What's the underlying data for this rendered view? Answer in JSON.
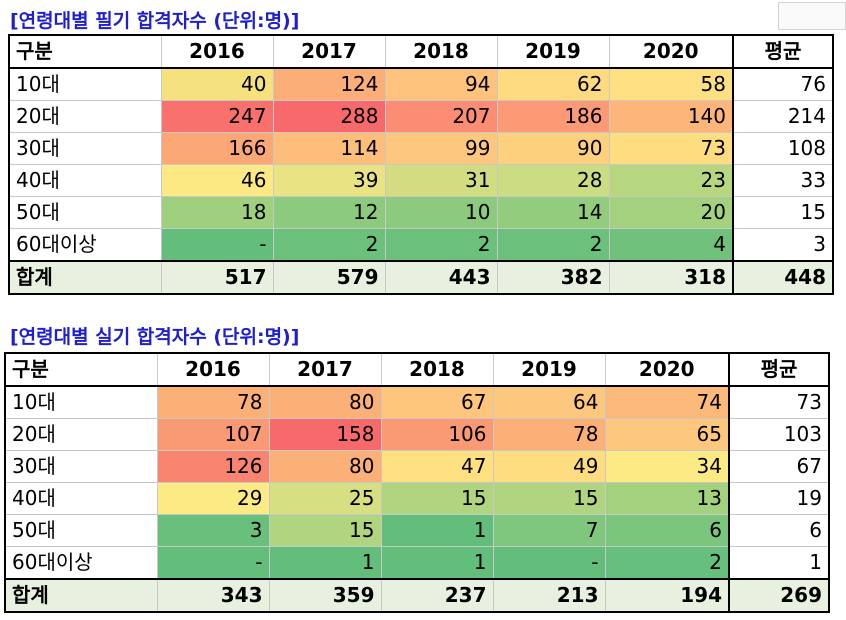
{
  "table1": {
    "title": "[연령대별 필기 합격자수 (단위:명)]",
    "headers": [
      "구분",
      "2016",
      "2017",
      "2018",
      "2019",
      "2020",
      "평균"
    ],
    "rows": [
      {
        "label": "10대",
        "values": [
          "40",
          "124",
          "94",
          "62",
          "58"
        ],
        "colors": [
          "#f5e27f",
          "#fbae78",
          "#fdc37c",
          "#fedb81",
          "#fde081"
        ],
        "avg": "76"
      },
      {
        "label": "20대",
        "values": [
          "247",
          "288",
          "207",
          "186",
          "140"
        ],
        "colors": [
          "#f8716c",
          "#f8696b",
          "#fa8d73",
          "#fb9a75",
          "#fdb57a"
        ],
        "avg": "214"
      },
      {
        "label": "30대",
        "values": [
          "166",
          "114",
          "99",
          "90",
          "73"
        ],
        "colors": [
          "#fca876",
          "#fdbd7b",
          "#fdc77d",
          "#fdd07e",
          "#fedd81"
        ],
        "avg": "108"
      },
      {
        "label": "40대",
        "values": [
          "46",
          "39",
          "31",
          "28",
          "23"
        ],
        "colors": [
          "#fde983",
          "#e9e383",
          "#d2dd82",
          "#cbdc81",
          "#b6d67f"
        ],
        "avg": "33"
      },
      {
        "label": "50대",
        "values": [
          "18",
          "12",
          "10",
          "14",
          "20"
        ],
        "colors": [
          "#9fd07e",
          "#8ccb7e",
          "#8ccb7e",
          "#92cd7e",
          "#a3d17e"
        ],
        "avg": "15"
      },
      {
        "label": "60대이상",
        "values": [
          "-",
          "2",
          "2",
          "2",
          "4"
        ],
        "colors": [
          "#63be7b",
          "#6bc07c",
          "#6bc07c",
          "#6bc07c",
          "#6fc17c"
        ],
        "avg": "3"
      }
    ],
    "total": {
      "label": "합계",
      "values": [
        "517",
        "579",
        "443",
        "382",
        "318"
      ],
      "avg": "448"
    }
  },
  "table2": {
    "title": "[연령대별 실기 합격자수 (단위:명)]",
    "headers": [
      "구분",
      "2016",
      "2017",
      "2018",
      "2019",
      "2020",
      "평균"
    ],
    "rows": [
      {
        "label": "10대",
        "values": [
          "78",
          "80",
          "67",
          "64",
          "74"
        ],
        "colors": [
          "#fbb078",
          "#fbb078",
          "#fdc67c",
          "#fdc87d",
          "#fcb97a"
        ],
        "avg": "73"
      },
      {
        "label": "20대",
        "values": [
          "107",
          "158",
          "106",
          "78",
          "65"
        ],
        "colors": [
          "#f99a74",
          "#f8696b",
          "#f99a74",
          "#fbb078",
          "#fdc77d"
        ],
        "avg": "103"
      },
      {
        "label": "30대",
        "values": [
          "126",
          "80",
          "47",
          "49",
          "34"
        ],
        "colors": [
          "#f98570",
          "#fbb078",
          "#fee080",
          "#fedd81",
          "#fdea84"
        ],
        "avg": "67"
      },
      {
        "label": "40대",
        "values": [
          "29",
          "25",
          "15",
          "15",
          "13"
        ],
        "colors": [
          "#fceb84",
          "#d6df82",
          "#b0d47f",
          "#b0d47f",
          "#a4d17e"
        ],
        "avg": "19"
      },
      {
        "label": "50대",
        "values": [
          "3",
          "15",
          "1",
          "7",
          "6"
        ],
        "colors": [
          "#69c07c",
          "#b0d47f",
          "#63be7b",
          "#7fc77d",
          "#7bc67d"
        ],
        "avg": "6"
      },
      {
        "label": "60대이상",
        "values": [
          "-",
          "1",
          "1",
          "-",
          "2"
        ],
        "colors": [
          "#63be7b",
          "#63be7b",
          "#63be7b",
          "#63be7b",
          "#66bf7c"
        ],
        "avg": "1"
      }
    ],
    "total": {
      "label": "합계",
      "values": [
        "343",
        "359",
        "237",
        "213",
        "194"
      ],
      "avg": "269"
    }
  }
}
